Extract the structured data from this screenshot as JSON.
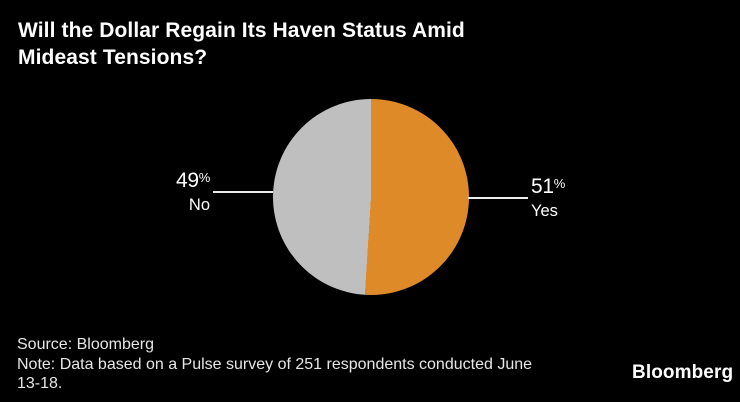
{
  "chart_data": {
    "type": "pie",
    "title": "Will the Dollar Regain Its Haven Status Amid Mideast Tensions?",
    "slices": [
      {
        "label": "Yes",
        "value": 51,
        "display": "51%",
        "color": "#de8a28"
      },
      {
        "label": "No",
        "value": 49,
        "display": "49%",
        "color": "#bfbfbf"
      }
    ],
    "start_angle_deg": 0,
    "direction": "clockwise",
    "legend_position": "none",
    "label_style": "outside with leader lines",
    "background": "#000000"
  },
  "title_lines": [
    "Will the Dollar Regain Its Haven Status Amid",
    "Mideast Tensions?"
  ],
  "labels": {
    "no": {
      "number": "49",
      "percent_sign": "%",
      "name": "No"
    },
    "yes": {
      "number": "51",
      "percent_sign": "%",
      "name": "Yes"
    }
  },
  "footer": {
    "source": "Source: Bloomberg",
    "note_lines": [
      "Note: Data based on a Pulse survey of 251 respondents conducted June",
      "13-18."
    ],
    "logo": "Bloomberg"
  },
  "colors": {
    "background": "#000000",
    "yes_slice": "#de8a28",
    "no_slice": "#bfbfbf",
    "title_text": "#ffffff",
    "footer_text": "#e6e6e6",
    "leader_line": "#ececec"
  }
}
